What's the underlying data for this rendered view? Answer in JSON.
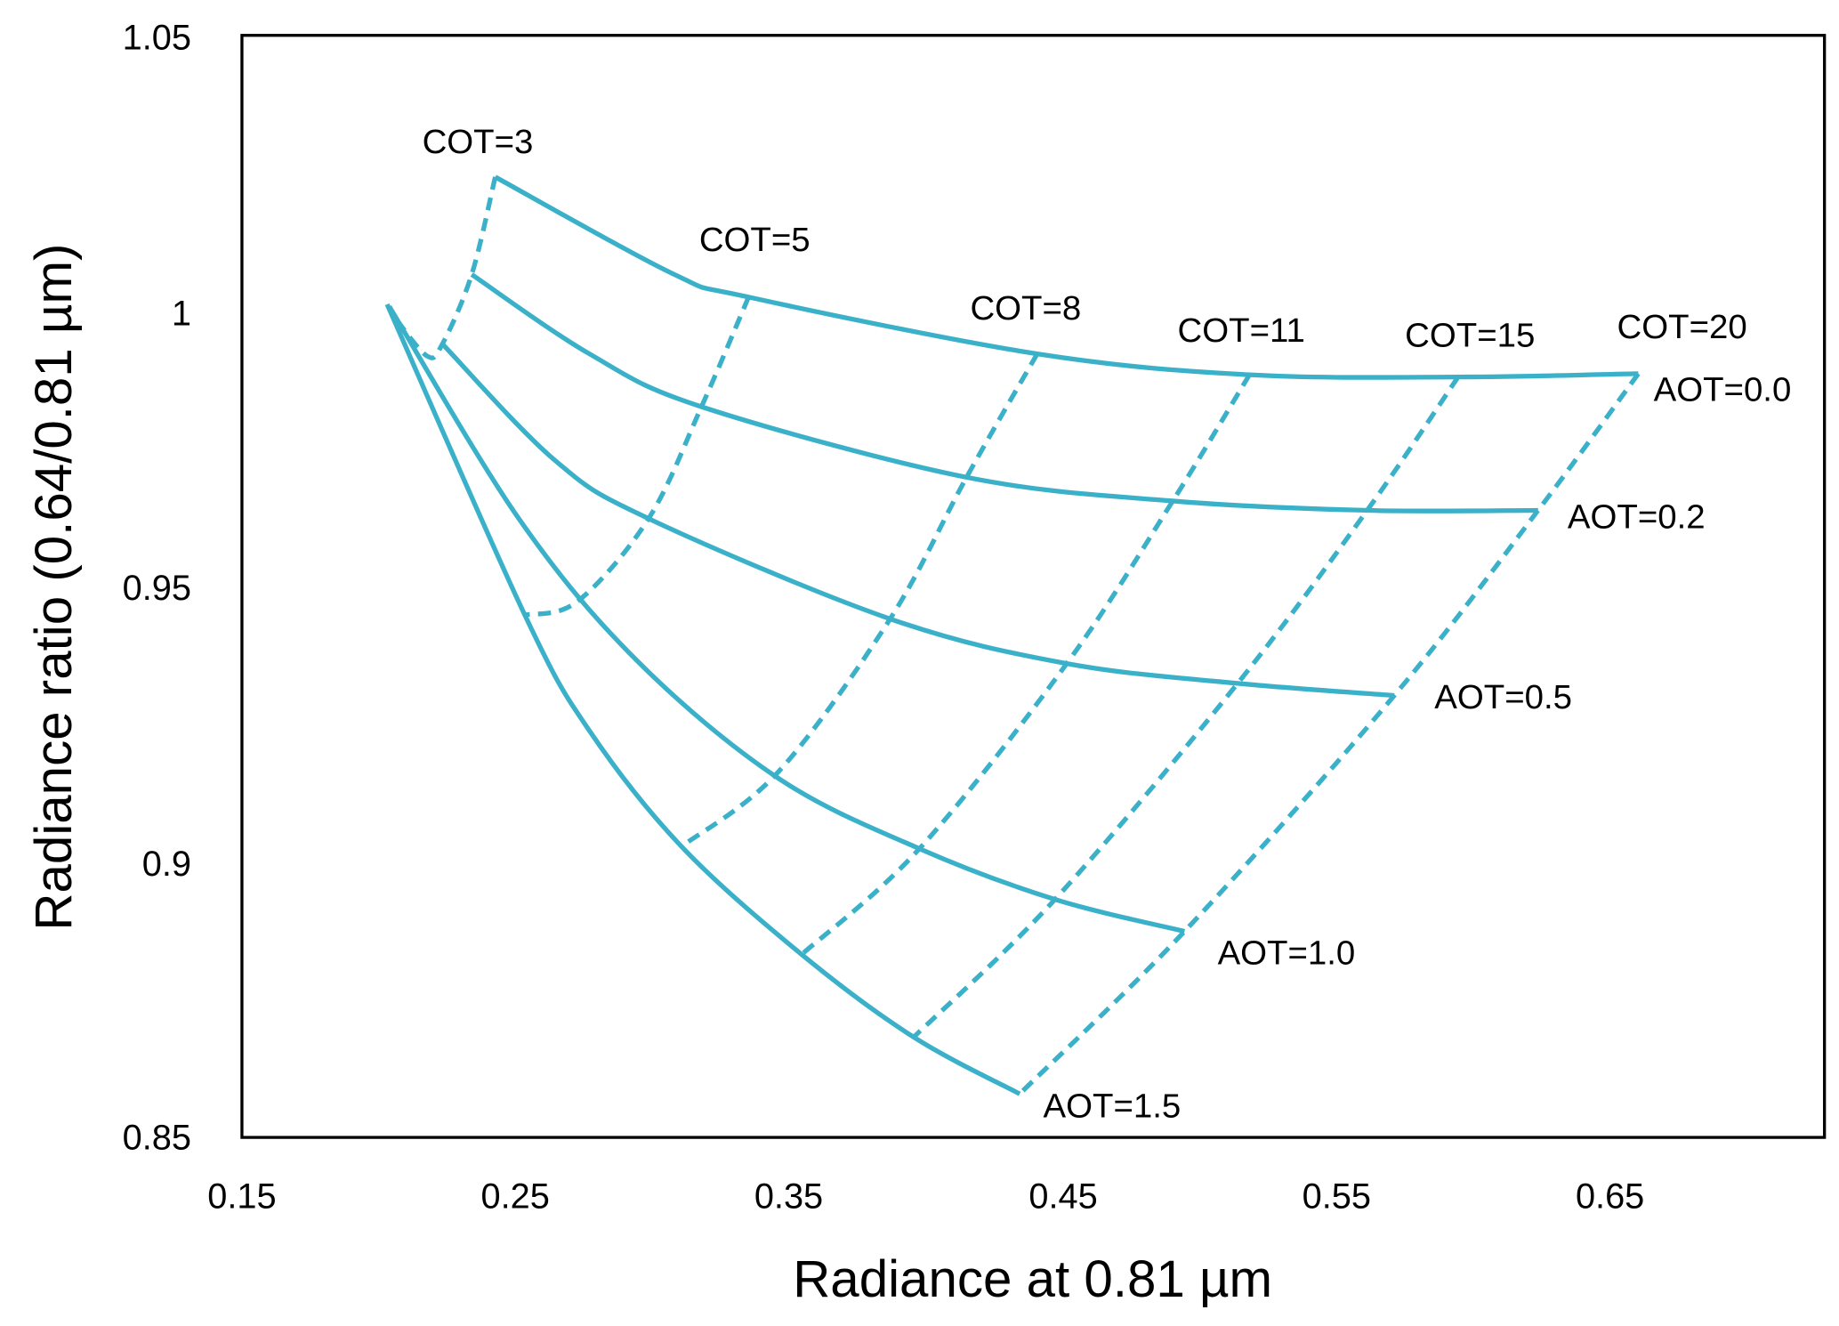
{
  "chart_data": {
    "type": "line",
    "title": "",
    "xlabel": "Radiance at 0.81 µm",
    "ylabel": "Radiance ratio (0.64/0.81 µm)",
    "xlim": [
      0.15,
      0.73
    ],
    "ylim": [
      0.85,
      1.05
    ],
    "xticks": [
      "0.15",
      "0.25",
      "0.35",
      "0.45",
      "0.55",
      "0.65"
    ],
    "yticks": [
      "0.85",
      "0.9",
      "0.95",
      "1",
      "1.05"
    ],
    "grid": false,
    "color": "#3BB1C9",
    "aot_series": [
      {
        "name": "AOT=0.0",
        "x": [
          0.2425,
          0.3071,
          0.335,
          0.4404,
          0.5179,
          0.5941,
          0.6599
        ],
        "y": [
          1.0243,
          1.0068,
          1.0025,
          0.9922,
          0.9884,
          0.988,
          0.9886
        ]
      },
      {
        "name": "AOT=0.2",
        "x": [
          0.2339,
          0.2769,
          0.3178,
          0.4146,
          0.4899,
          0.5609,
          0.6233
        ],
        "y": [
          1.0066,
          0.9922,
          0.9826,
          0.9698,
          0.9655,
          0.9638,
          0.9638
        ]
      },
      {
        "name": "AOT=0.5",
        "x": [
          0.2232,
          0.264,
          0.2985,
          0.3867,
          0.4512,
          0.5136,
          0.5708
        ],
        "y": [
          0.994,
          0.973,
          0.9623,
          0.9441,
          0.936,
          0.9324,
          0.9302
        ]
      },
      {
        "name": "AOT=1.0",
        "x": [
          0.2038,
          0.2511,
          0.2941,
          0.3458,
          0.3974,
          0.4469,
          0.4942
        ],
        "y": [
          1.0008,
          0.9623,
          0.9366,
          0.9152,
          0.9024,
          0.8932,
          0.8874
        ]
      },
      {
        "name": "AOT=1.5",
        "x": [
          0.203,
          0.2533,
          0.2769,
          0.3105,
          0.3544,
          0.3953,
          0.434
        ],
        "y": [
          1.0012,
          0.9448,
          0.9238,
          0.9028,
          0.8832,
          0.8682,
          0.8579
        ]
      }
    ],
    "cot_series": [
      {
        "name": "COT=3",
        "x": [
          0.2425,
          0.2339,
          0.2232,
          0.2176,
          0.206
        ],
        "y": [
          1.0243,
          1.0066,
          0.994,
          0.9918,
          0.9987
        ]
      },
      {
        "name": "COT=5",
        "x": [
          0.335,
          0.3178,
          0.2985,
          0.2726,
          0.2533
        ],
        "y": [
          1.0025,
          0.9826,
          0.9623,
          0.9473,
          0.9448
        ]
      },
      {
        "name": "COT=8",
        "x": [
          0.4404,
          0.4146,
          0.3867,
          0.3458,
          0.3105
        ],
        "y": [
          0.9922,
          0.9698,
          0.9441,
          0.9163,
          0.9028
        ]
      },
      {
        "name": "COT=11",
        "x": [
          0.5179,
          0.4899,
          0.4512,
          0.3974,
          0.3544
        ],
        "y": [
          0.9884,
          0.9655,
          0.936,
          0.9024,
          0.8832
        ]
      },
      {
        "name": "COT=15",
        "x": [
          0.5941,
          0.5609,
          0.5136,
          0.4469,
          0.3953
        ],
        "y": [
          0.988,
          0.9638,
          0.9324,
          0.8932,
          0.8682
        ]
      },
      {
        "name": "COT=20",
        "x": [
          0.6599,
          0.6233,
          0.5708,
          0.4942,
          0.434
        ],
        "y": [
          0.9886,
          0.9638,
          0.9302,
          0.8874,
          0.8579
        ]
      }
    ]
  }
}
